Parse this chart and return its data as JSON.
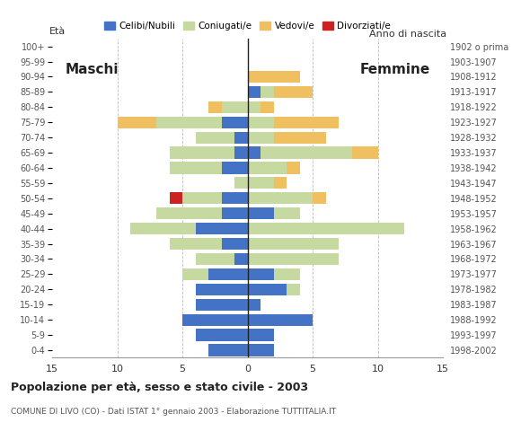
{
  "age_groups": [
    "0-4",
    "5-9",
    "10-14",
    "15-19",
    "20-24",
    "25-29",
    "30-34",
    "35-39",
    "40-44",
    "45-49",
    "50-54",
    "55-59",
    "60-64",
    "65-69",
    "70-74",
    "75-79",
    "80-84",
    "85-89",
    "90-94",
    "95-99",
    "100+"
  ],
  "birth_years": [
    "1998-2002",
    "1993-1997",
    "1988-1992",
    "1983-1987",
    "1978-1982",
    "1973-1977",
    "1968-1972",
    "1963-1967",
    "1958-1962",
    "1953-1957",
    "1948-1952",
    "1943-1947",
    "1938-1942",
    "1933-1937",
    "1928-1932",
    "1923-1927",
    "1918-1922",
    "1913-1917",
    "1908-1912",
    "1903-1907",
    "1902 o prima"
  ],
  "males": {
    "celibe": [
      3,
      4,
      5,
      4,
      4,
      3,
      1,
      2,
      4,
      2,
      2,
      0,
      2,
      1,
      1,
      2,
      0,
      0,
      0,
      0,
      0
    ],
    "coniugato": [
      0,
      0,
      0,
      0,
      0,
      2,
      3,
      4,
      5,
      5,
      3,
      1,
      4,
      5,
      3,
      5,
      2,
      0,
      0,
      0,
      0
    ],
    "vedovo": [
      0,
      0,
      0,
      0,
      0,
      0,
      0,
      0,
      0,
      0,
      0,
      0,
      0,
      0,
      0,
      3,
      1,
      0,
      0,
      0,
      0
    ],
    "divorziato": [
      0,
      0,
      0,
      0,
      0,
      0,
      0,
      0,
      0,
      0,
      1,
      0,
      0,
      0,
      0,
      0,
      0,
      0,
      0,
      0,
      0
    ]
  },
  "females": {
    "nubile": [
      2,
      2,
      5,
      1,
      3,
      2,
      0,
      0,
      0,
      2,
      0,
      0,
      0,
      1,
      0,
      0,
      0,
      1,
      0,
      0,
      0
    ],
    "coniugata": [
      0,
      0,
      0,
      0,
      1,
      2,
      7,
      7,
      12,
      2,
      5,
      2,
      3,
      7,
      2,
      2,
      1,
      1,
      0,
      0,
      0
    ],
    "vedova": [
      0,
      0,
      0,
      0,
      0,
      0,
      0,
      0,
      0,
      0,
      1,
      1,
      1,
      2,
      4,
      5,
      1,
      3,
      4,
      0,
      0
    ],
    "divorziata": [
      0,
      0,
      0,
      0,
      0,
      0,
      0,
      0,
      0,
      0,
      0,
      0,
      0,
      0,
      0,
      0,
      0,
      0,
      0,
      0,
      0
    ]
  },
  "color_celibe": "#4472c4",
  "color_coniugato": "#c5d9a0",
  "color_vedovo": "#f0c060",
  "color_divorziato": "#cc2222",
  "title": "Popolazione per età, sesso e stato civile - 2003",
  "subtitle": "COMUNE DI LIVO (CO) - Dati ISTAT 1° gennaio 2003 - Elaborazione TUTTITALIA.IT",
  "label_maschi": "Maschi",
  "label_femmine": "Femmine",
  "label_eta": "Età",
  "label_anno": "Anno di nascita",
  "xlim": 15,
  "bg_color": "#ffffff",
  "grid_color": "#bbbbbb"
}
